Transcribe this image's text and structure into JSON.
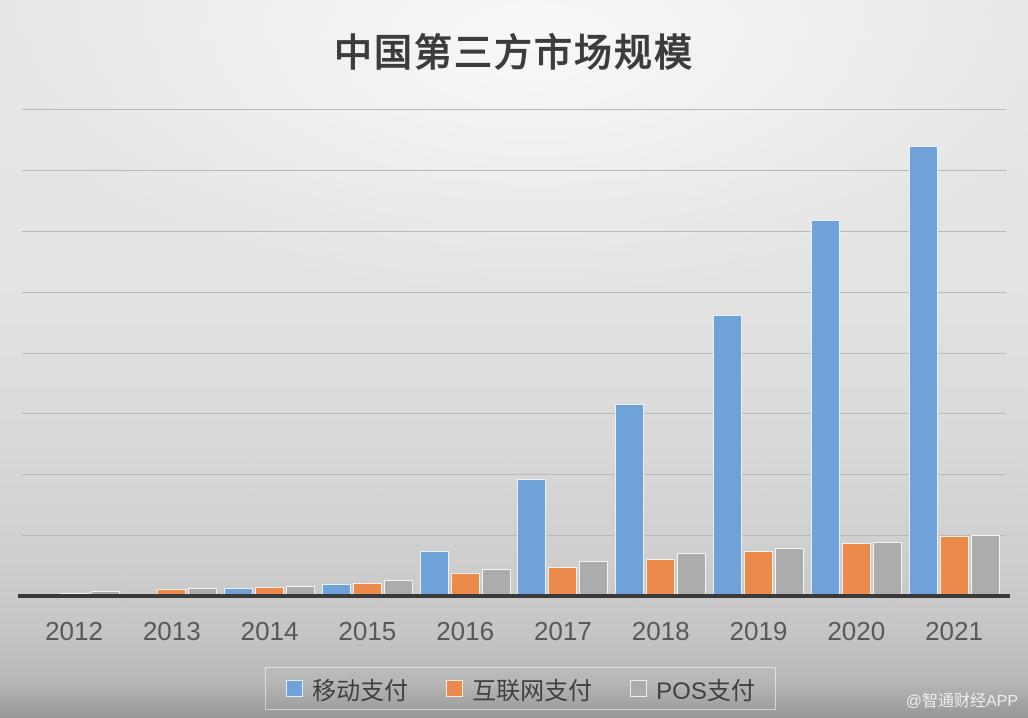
{
  "title": "中国第三方市场规模",
  "watermark": "@智通财经APP",
  "colors": {
    "mobile_blue": "#6FA2D9",
    "internet_orange": "#EC8A4C",
    "pos_gray": "#ACACAC",
    "axis_line": "#3a3a3a",
    "gridline": "#b9b9b9",
    "title_text": "#3c3c3c",
    "axis_label_text": "#595959",
    "legend_text": "#404040"
  },
  "chart_data": {
    "type": "bar",
    "title": "中国第三方市场规模",
    "categories": [
      "2012",
      "2013",
      "2014",
      "2015",
      "2016",
      "2017",
      "2018",
      "2019",
      "2020",
      "2021"
    ],
    "series": [
      {
        "name": "移动支付",
        "color": "#6FA2D9",
        "values": [
          0.02,
          0.04,
          0.13,
          0.2,
          0.74,
          1.93,
          3.15,
          4.61,
          6.18,
          7.39
        ]
      },
      {
        "name": "互联网支付",
        "color": "#EC8A4C",
        "values": [
          0.05,
          0.11,
          0.14,
          0.21,
          0.37,
          0.48,
          0.61,
          0.74,
          0.87,
          0.98
        ]
      },
      {
        "name": "POS支付",
        "color": "#ACACAC",
        "values": [
          0.09,
          0.13,
          0.17,
          0.26,
          0.44,
          0.57,
          0.7,
          0.79,
          0.89,
          1.0
        ]
      }
    ],
    "xlabel": "",
    "ylabel": "",
    "ylim": [
      0,
      8
    ],
    "y_axis_labels_visible": false,
    "y_unit": "unlabeled gridline intervals (no y-axis tick labels shown)",
    "gridline_count": 8,
    "grid": "horizontal",
    "legend_position": "bottom"
  }
}
